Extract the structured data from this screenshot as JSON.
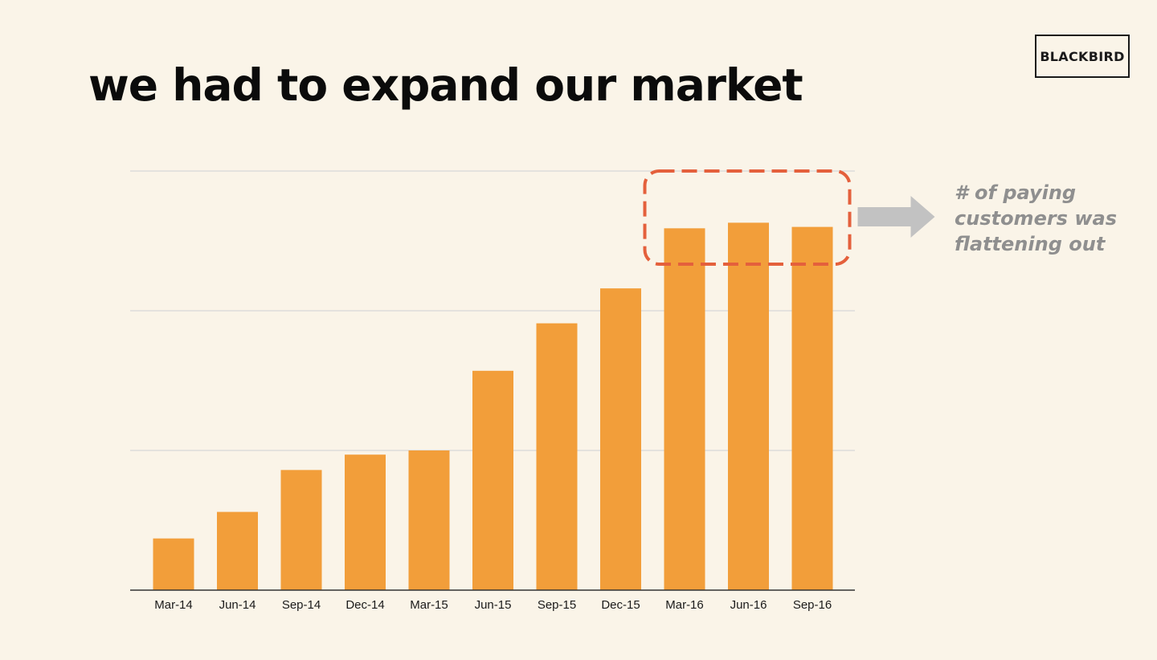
{
  "slide": {
    "title": "we had to expand our market",
    "logo_text": "BLACKBIRD",
    "annotation": "# of paying customers was flattening out"
  },
  "colors": {
    "background": "#faf4e8",
    "bar": "#f29e3a",
    "highlight_box": "#e4603c",
    "arrow": "#c2c2c2",
    "gridline": "#d8d8d8",
    "annotation_text": "#8f8f8f"
  },
  "chart_data": {
    "type": "bar",
    "title": "",
    "xlabel": "",
    "ylabel": "",
    "categories": [
      "Mar-14",
      "Jun-14",
      "Sep-14",
      "Dec-14",
      "Mar-15",
      "Jun-15",
      "Sep-15",
      "Dec-15",
      "Mar-16",
      "Jun-16",
      "Sep-16"
    ],
    "values": [
      0.37,
      0.56,
      0.86,
      0.97,
      1.0,
      1.57,
      1.91,
      2.16,
      2.59,
      2.63,
      2.6
    ],
    "ylim": [
      0,
      3
    ],
    "y_tick_labels_shown": false,
    "grid": true,
    "legend": "none",
    "highlight": {
      "categories": [
        "Mar-16",
        "Jun-16",
        "Sep-16"
      ],
      "style": "dashed-box",
      "callout": "arrow-right"
    }
  }
}
